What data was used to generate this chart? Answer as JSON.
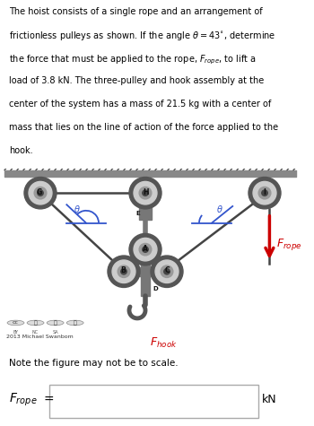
{
  "background_color": "#ffffff",
  "text_color": "#000000",
  "arrow_color": "#cc0000",
  "angle_color": "#3355cc",
  "pulley_outer_color": "#555555",
  "pulley_mid_color": "#cccccc",
  "pulley_hub_color": "#444444",
  "rope_color": "#444444",
  "bar_color": "#777777",
  "ceiling_color": "#888888",
  "fig_width": 3.5,
  "fig_height": 4.75,
  "dpi": 100,
  "problem_lines": [
    "The hoist consists of a single rope and an arrangement of",
    "frictionless pulleys as shown. If the angle $\\theta = 43^{\\circ}$, determine",
    "the force that must be applied to the rope, $F_{rope}$, to lift a",
    "load of 3.8 kN. The three-pulley and hook assembly at the",
    "center of the system has a mass of 21.5 kg with a center of",
    "mass that lies on the line of action of the force applied to the",
    "hook."
  ],
  "note_text": "Note the figure may not be to scale.",
  "cc_text": "2013 Michael Swanbom"
}
